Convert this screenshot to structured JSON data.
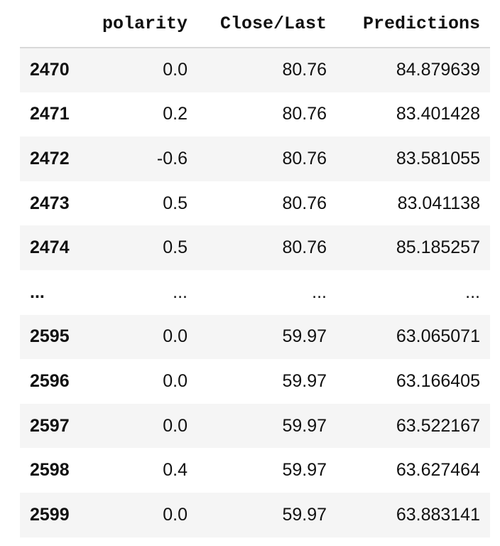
{
  "columns": [
    "polarity",
    "Close/Last",
    "Predictions"
  ],
  "rows": [
    {
      "index": "2470",
      "polarity": "0.0",
      "close": "80.76",
      "predictions": "84.879639"
    },
    {
      "index": "2471",
      "polarity": "0.2",
      "close": "80.76",
      "predictions": "83.401428"
    },
    {
      "index": "2472",
      "polarity": "-0.6",
      "close": "80.76",
      "predictions": "83.581055"
    },
    {
      "index": "2473",
      "polarity": "0.5",
      "close": "80.76",
      "predictions": "83.041138"
    },
    {
      "index": "2474",
      "polarity": "0.5",
      "close": "80.76",
      "predictions": "85.185257"
    },
    {
      "index": "...",
      "polarity": "...",
      "close": "...",
      "predictions": "..."
    },
    {
      "index": "2595",
      "polarity": "0.0",
      "close": "59.97",
      "predictions": "63.065071"
    },
    {
      "index": "2596",
      "polarity": "0.0",
      "close": "59.97",
      "predictions": "63.166405"
    },
    {
      "index": "2597",
      "polarity": "0.0",
      "close": "59.97",
      "predictions": "63.522167"
    },
    {
      "index": "2598",
      "polarity": "0.4",
      "close": "59.97",
      "predictions": "63.627464"
    },
    {
      "index": "2599",
      "polarity": "0.0",
      "close": "59.97",
      "predictions": "63.883141"
    }
  ]
}
